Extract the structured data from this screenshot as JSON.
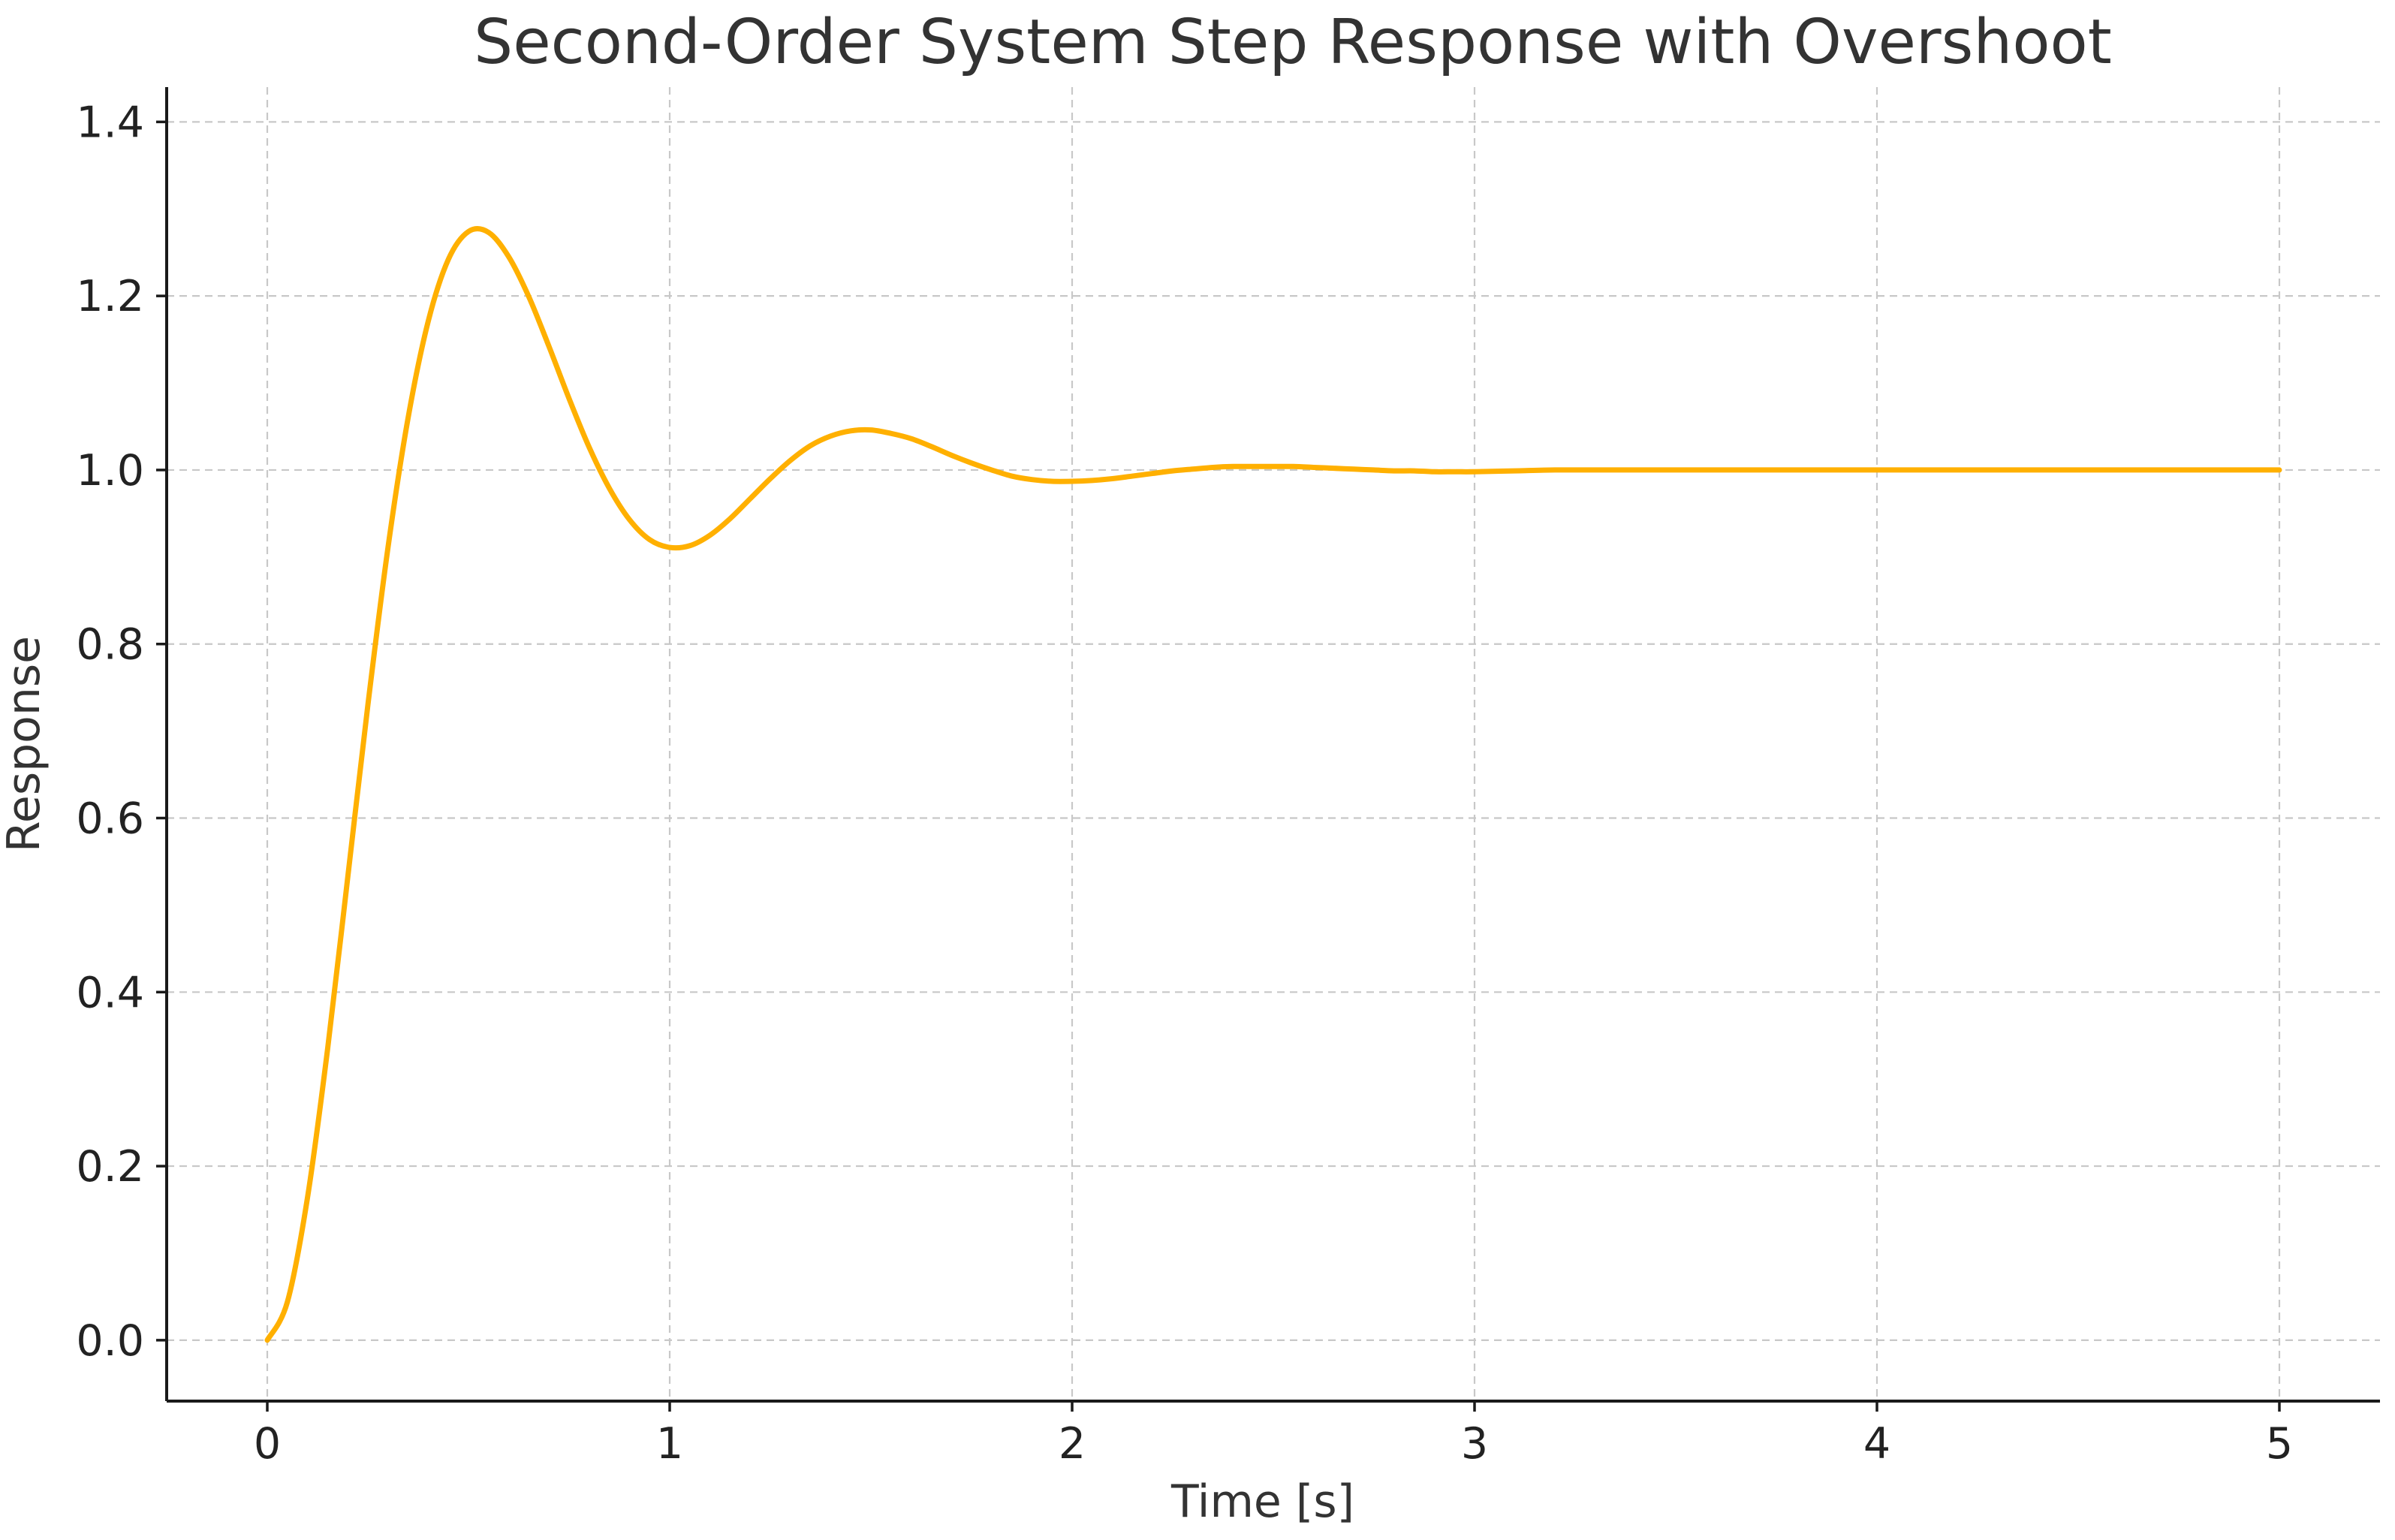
{
  "chart_data": {
    "type": "line",
    "title": "Second-Order System Step Response with Overshoot",
    "xlabel": "Time [s]",
    "ylabel": "Response",
    "xlim": [
      -0.25,
      5.25
    ],
    "ylim": [
      -0.07,
      1.44
    ],
    "x_ticks": [
      0,
      1,
      2,
      3,
      4,
      5
    ],
    "x_tick_labels": [
      "0",
      "1",
      "2",
      "3",
      "4",
      "5"
    ],
    "y_ticks": [
      0.0,
      0.2,
      0.4,
      0.6,
      0.8,
      1.0,
      1.2,
      1.4
    ],
    "y_tick_labels": [
      "0.0",
      "0.2",
      "0.4",
      "0.6",
      "0.8",
      "1.0",
      "1.2",
      "1.4"
    ],
    "grid": true,
    "series": [
      {
        "color": "#FFB000",
        "x": [
          0,
          0.05,
          0.1,
          0.15,
          0.2,
          0.25,
          0.3,
          0.35,
          0.4,
          0.45,
          0.5,
          0.55,
          0.6,
          0.65,
          0.7,
          0.75,
          0.8,
          0.85,
          0.9,
          0.95,
          1.0,
          1.05,
          1.1,
          1.15,
          1.2,
          1.25,
          1.3,
          1.35,
          1.4,
          1.45,
          1.5,
          1.55,
          1.6,
          1.65,
          1.7,
          1.75,
          1.8,
          1.85,
          1.9,
          1.95,
          2.0,
          2.05,
          2.1,
          2.15,
          2.2,
          2.25,
          2.3,
          2.35,
          2.4,
          2.45,
          2.5,
          2.55,
          2.6,
          2.65,
          2.7,
          2.75,
          2.8,
          2.85,
          2.9,
          2.95,
          3.0,
          3.1,
          3.2,
          3.3,
          3.4,
          3.5,
          3.6,
          3.7,
          3.8,
          3.9,
          4.0,
          4.1,
          4.2,
          4.3,
          4.4,
          4.5,
          4.6,
          4.7,
          4.8,
          4.9,
          5.0
        ],
        "values": [
          0.0,
          0.044,
          0.164,
          0.335,
          0.532,
          0.73,
          0.911,
          1.06,
          1.171,
          1.242,
          1.274,
          1.273,
          1.245,
          1.199,
          1.142,
          1.082,
          1.026,
          0.979,
          0.943,
          0.92,
          0.911,
          0.913,
          0.925,
          0.944,
          0.967,
          0.99,
          1.011,
          1.028,
          1.039,
          1.045,
          1.046,
          1.042,
          1.036,
          1.027,
          1.017,
          1.008,
          1.0,
          0.993,
          0.989,
          0.987,
          0.987,
          0.988,
          0.99,
          0.993,
          0.996,
          0.999,
          1.001,
          1.003,
          1.004,
          1.004,
          1.004,
          1.004,
          1.003,
          1.002,
          1.001,
          1.0,
          0.999,
          0.999,
          0.998,
          0.998,
          0.998,
          0.999,
          1.0,
          1.0,
          1.0,
          1.0,
          1.0,
          1.0,
          1.0,
          1.0,
          1.0,
          1.0,
          1.0,
          1.0,
          1.0,
          1.0,
          1.0,
          1.0,
          1.0,
          1.0,
          1.0
        ]
      }
    ]
  }
}
